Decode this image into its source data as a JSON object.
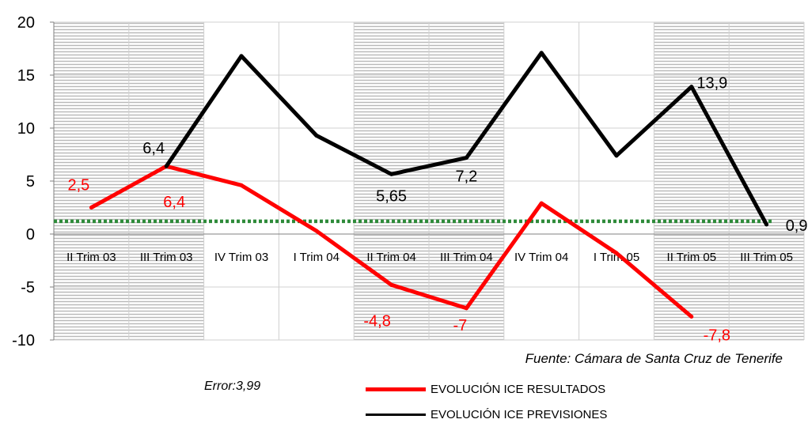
{
  "chart_data": {
    "type": "line",
    "categories": [
      "II Trim 03",
      "III Trim 03",
      "IV Trim 03",
      "I Trim 04",
      "II Trim 04",
      "III Trim 04",
      "IV Trim 04",
      "I Trim 05",
      "II Trim 05",
      "III Trim 05"
    ],
    "ylim": [
      -10,
      20
    ],
    "yticks": [
      "20",
      "15",
      "10",
      "5",
      "0",
      "-5",
      "-10"
    ],
    "shaded_bands": [
      [
        0,
        1
      ],
      [
        4,
        5
      ],
      [
        8,
        9
      ]
    ],
    "series": [
      {
        "name": "EVOLUCIÓN ICE RESULTADOS",
        "color": "#ff0000",
        "values": [
          2.5,
          6.4,
          4.6,
          0.3,
          -4.8,
          -7,
          2.9,
          -1.8,
          -7.8,
          null
        ],
        "labels": [
          "2,5",
          "6,4",
          "",
          "",
          "-4,8",
          "-7",
          "",
          "",
          "-7,8",
          ""
        ]
      },
      {
        "name": "EVOLUCIÓN ICE PREVISIONES",
        "color": "#000000",
        "values": [
          null,
          6.4,
          16.8,
          9.3,
          5.65,
          7.2,
          17.1,
          7.4,
          13.9,
          0.9
        ],
        "labels": [
          "",
          "6,4",
          "",
          "",
          "5,65",
          "7,2",
          "",
          "",
          "13,9",
          "0,9"
        ]
      }
    ],
    "reference_line": {
      "value": 1.2,
      "color": "#2e8b3a"
    },
    "grid": true,
    "source": "Fuente: Cámara de Santa Cruz de Tenerife",
    "error_text": "Error:3,99",
    "legend_position": "bottom"
  }
}
